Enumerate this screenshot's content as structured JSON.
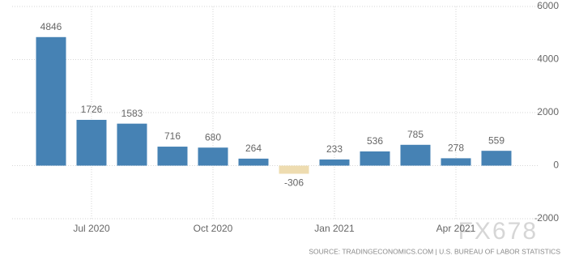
{
  "chart_data": {
    "type": "bar",
    "categories": [
      null,
      "Jul 2020",
      null,
      null,
      "Oct 2020",
      null,
      null,
      "Jan 2021",
      null,
      null,
      "Apr 2021",
      null
    ],
    "values": [
      4846,
      1726,
      1583,
      716,
      680,
      264,
      -306,
      233,
      536,
      785,
      278,
      559
    ],
    "color": "#4682b4",
    "negative_color": "#eedcb0",
    "ylim": [
      -2000,
      6000
    ],
    "yticks": [
      -2000,
      0,
      2000,
      4000,
      6000
    ],
    "grid": true,
    "source": "SOURCE: TRADINGECONOMICS.COM | U.S. BUREAU OF LABOR STATISTICS",
    "watermark": "FX678"
  }
}
